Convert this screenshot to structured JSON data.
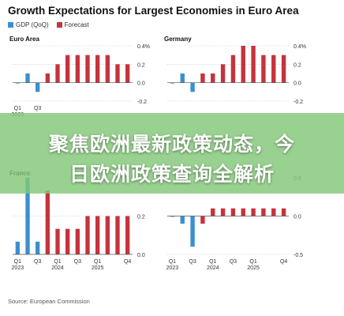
{
  "header": {
    "title": "Growth Expectations for Largest Economies in Euro Area",
    "legend": [
      {
        "label": "GDP (QoQ)",
        "color": "#3b8fd0"
      },
      {
        "label": "Forecast",
        "color": "#c7323c"
      }
    ]
  },
  "banner": {
    "line1": "聚焦欧洲最新政策动态，今",
    "line2": "日欧洲政策查询全解析"
  },
  "footer": {
    "source": "Source: European Commission"
  },
  "chart_data": [
    {
      "type": "bar",
      "title": "Euro Area",
      "categories": [
        "2023 Q1",
        "2023 Q2",
        "2023 Q3",
        "2023 Q4",
        "2024 Q1",
        "2024 Q2",
        "2024 Q3",
        "2024 Q4",
        "2025 Q1",
        "2025 Q2",
        "2025 Q3",
        "2025 Q4"
      ],
      "gdp": [
        0.0,
        0.1,
        -0.1,
        null,
        null,
        null,
        null,
        null,
        null,
        null,
        null,
        null
      ],
      "forecast": [
        null,
        null,
        null,
        0.1,
        0.2,
        0.3,
        0.3,
        0.3,
        0.3,
        0.3,
        0.2,
        0.2
      ],
      "ylim": [
        -0.2,
        0.4
      ],
      "yticks": [
        "0.4%",
        "0.2",
        "0.0",
        "-0.2"
      ],
      "xticks": [
        {
          "index": 0,
          "top": "Q1",
          "bottom": "2023"
        },
        {
          "index": 2,
          "top": "Q3",
          "bottom": ""
        }
      ]
    },
    {
      "type": "bar",
      "title": "Germany",
      "categories": [
        "2023 Q1",
        "2023 Q2",
        "2023 Q3",
        "2023 Q4",
        "2024 Q1",
        "2024 Q2",
        "2024 Q3",
        "2024 Q4",
        "2025 Q1",
        "2025 Q2",
        "2025 Q3",
        "2025 Q4"
      ],
      "gdp": [
        0.0,
        0.1,
        -0.1,
        null,
        null,
        null,
        null,
        null,
        null,
        null,
        null,
        null
      ],
      "forecast": [
        null,
        null,
        null,
        0.1,
        0.1,
        0.2,
        0.3,
        0.4,
        0.4,
        0.3,
        0.3,
        0.3
      ],
      "ylim": [
        -0.2,
        0.4
      ],
      "yticks": [
        "0.4%",
        "0.2",
        "0.0",
        "-0.2"
      ],
      "xticks": []
    },
    {
      "type": "bar",
      "title": "France",
      "categories": [
        "2023 Q1",
        "2023 Q2",
        "2023 Q3",
        "2023 Q4",
        "2024 Q1",
        "2024 Q2",
        "2024 Q3",
        "2024 Q4",
        "2025 Q1",
        "2025 Q2",
        "2025 Q3",
        "2025 Q4"
      ],
      "gdp": [
        0.1,
        0.6,
        0.1,
        null,
        null,
        null,
        null,
        null,
        null,
        null,
        null,
        null
      ],
      "forecast": [
        null,
        null,
        null,
        0.5,
        0.2,
        0.2,
        0.2,
        0.3,
        0.3,
        0.3,
        0.3,
        0.3
      ],
      "ylim": [
        0.0,
        0.6
      ],
      "yticks": [
        "0.4",
        "0.2",
        "0.0"
      ],
      "xticks": [
        {
          "index": 0,
          "top": "Q1",
          "bottom": "2023"
        },
        {
          "index": 2,
          "top": "Q3",
          "bottom": ""
        },
        {
          "index": 4,
          "top": "Q1",
          "bottom": "2024"
        },
        {
          "index": 6,
          "top": "Q3",
          "bottom": ""
        },
        {
          "index": 8,
          "top": "Q1",
          "bottom": "2025"
        },
        {
          "index": 11,
          "top": "Q4",
          "bottom": ""
        }
      ]
    },
    {
      "type": "bar",
      "title": "",
      "categories": [
        "2023 Q1",
        "2023 Q2",
        "2023 Q3",
        "2023 Q4",
        "2024 Q1",
        "2024 Q2",
        "2024 Q3",
        "2024 Q4",
        "2025 Q1",
        "2025 Q2",
        "2025 Q3",
        "2025 Q4"
      ],
      "gdp": [
        0.0,
        -0.1,
        -0.4,
        null,
        null,
        null,
        null,
        null,
        null,
        null,
        null,
        null
      ],
      "forecast": [
        null,
        null,
        null,
        -0.1,
        0.1,
        0.1,
        0.1,
        0.1,
        0.1,
        0.1,
        0.1,
        0.1
      ],
      "ylim": [
        -0.5,
        0.5
      ],
      "yticks": [
        "0.5",
        "0.0",
        "-0.5"
      ],
      "xticks": [
        {
          "index": 0,
          "top": "Q1",
          "bottom": "2023"
        },
        {
          "index": 2,
          "top": "Q3",
          "bottom": ""
        },
        {
          "index": 4,
          "top": "Q1",
          "bottom": "2024"
        },
        {
          "index": 6,
          "top": "Q3",
          "bottom": ""
        },
        {
          "index": 8,
          "top": "Q1",
          "bottom": "2025"
        },
        {
          "index": 11,
          "top": "Q4",
          "bottom": ""
        }
      ]
    }
  ]
}
